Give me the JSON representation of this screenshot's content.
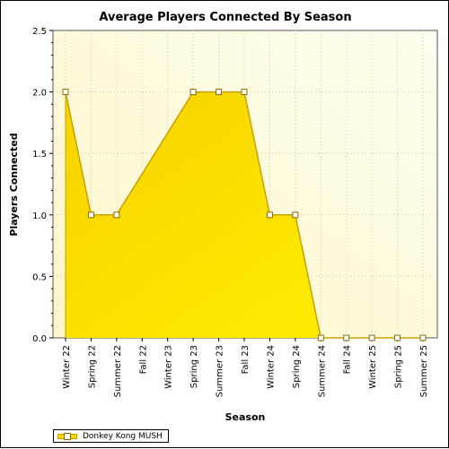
{
  "chart_data": {
    "type": "area",
    "title": "Average Players Connected By Season",
    "xlabel": "Season",
    "ylabel": "Players Connected",
    "categories": [
      "Winter 22",
      "Spring 22",
      "Summer 22",
      "Fall 22",
      "Winter 23",
      "Spring 23",
      "Summer 23",
      "Fall 23",
      "Winter 24",
      "Spring 24",
      "Summer 24",
      "Fall 24",
      "Winter 25",
      "Spring 25",
      "Summer 25"
    ],
    "y_ticks": [
      "0.0",
      "0.5",
      "1.0",
      "1.5",
      "2.0",
      "2.5"
    ],
    "ylim": [
      0,
      2.5
    ],
    "grid": true,
    "legend_position": "bottom-left",
    "series": [
      {
        "name": "Donkey Kong MUSH",
        "values": [
          2.0,
          1.0,
          1.0,
          null,
          null,
          2.0,
          2.0,
          2.0,
          1.0,
          1.0,
          0.0,
          0.0,
          0.0,
          0.0,
          0.0
        ],
        "fill_color": "#ffd700",
        "line_color": "#c8a000"
      }
    ]
  }
}
